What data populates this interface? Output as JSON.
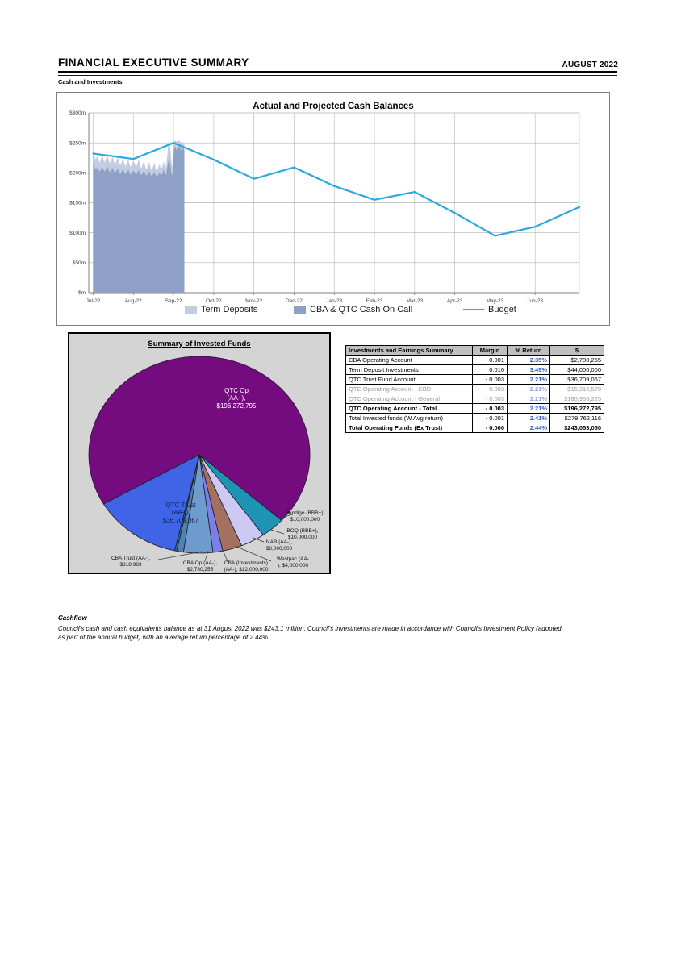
{
  "header": {
    "title": "FINANCIAL EXECUTIVE SUMMARY",
    "date": "AUGUST 2022",
    "section": "Cash and Investments"
  },
  "chart_data": [
    {
      "type": "area",
      "title": "Actual and Projected Cash Balances",
      "xlabel": "",
      "ylabel": "",
      "ylim": [
        0,
        300
      ],
      "grid": true,
      "legend_position": "bottom",
      "ylabels": [
        "$300m",
        "$250m",
        "$200m",
        "$150m",
        "$100m",
        "$50m",
        "$m"
      ],
      "categories": [
        "Jul-22",
        "Aug-22",
        "Sep-22",
        "Oct-22",
        "Nov-22",
        "Dec-22",
        "Jan-23",
        "Feb-23",
        "Mar-23",
        "Apr-23",
        "May-23",
        "Jun-23"
      ],
      "daily_months_span": [
        0,
        2.27
      ],
      "series": [
        {
          "name": "Term Deposits",
          "type": "area",
          "color": "#C3CCE1",
          "values": [
            16,
            18,
            16,
            19,
            17,
            15,
            18,
            20,
            17,
            15,
            18,
            20,
            16,
            15,
            17,
            19,
            16,
            14,
            17,
            19,
            15,
            14,
            16,
            18,
            15,
            13,
            16,
            18,
            14,
            13,
            15,
            16,
            14,
            12,
            15,
            17,
            13,
            11,
            14,
            16,
            12,
            10,
            13,
            15,
            12,
            10,
            13,
            15,
            11,
            10,
            12,
            14,
            11,
            12,
            14,
            12,
            14,
            20,
            33,
            28,
            20,
            14,
            12,
            10,
            14,
            11,
            9,
            12,
            10,
            9,
            12
          ]
        },
        {
          "name": "CBA & QTC Cash On Call",
          "type": "area",
          "color": "#8FA0C6",
          "values": [
            218,
            210,
            206,
            209,
            205,
            202,
            206,
            210,
            205,
            202,
            207,
            210,
            204,
            201,
            205,
            208,
            202,
            200,
            204,
            207,
            201,
            199,
            203,
            206,
            200,
            198,
            202,
            205,
            199,
            197,
            201,
            204,
            200,
            197,
            201,
            205,
            199,
            196,
            200,
            204,
            198,
            195,
            199,
            203,
            197,
            194,
            198,
            202,
            196,
            193,
            197,
            201,
            195,
            198,
            205,
            200,
            196,
            210,
            224,
            215,
            200,
            196,
            240,
            244,
            238,
            242,
            245,
            240,
            237,
            241,
            238
          ]
        },
        {
          "name": "Budget",
          "type": "line",
          "color": "#2BA9DF",
          "months": [
            0,
            1,
            2,
            3,
            4,
            5,
            6,
            7,
            8,
            9,
            10,
            11,
            12
          ],
          "values": [
            232,
            223,
            250,
            222,
            190,
            209,
            178,
            155,
            168,
            133,
            95,
            110,
            143
          ]
        }
      ]
    },
    {
      "type": "pie",
      "title": "Summary of Invested Funds",
      "start_angle_deg": 240,
      "slices": [
        {
          "name": "QTC Op (AA+)",
          "value": 196272795,
          "color": "#740B7F"
        },
        {
          "name": "Bendigo (BBB+)",
          "value": 10000000,
          "color": "#1F93B4"
        },
        {
          "name": "BOQ (BBB+)",
          "value": 10000000,
          "color": "#CCCAF4"
        },
        {
          "name": "NAB (AA-)",
          "value": 8000000,
          "color": "#A4705F"
        },
        {
          "name": "Westpac (AA-)",
          "value": 4000000,
          "color": "#7D7FE8"
        },
        {
          "name": "CBA (Investments) (AA-)",
          "value": 12000000,
          "color": "#6F9CCE"
        },
        {
          "name": "CBA Op (AA-)",
          "value": 2780255,
          "color": "#4E81B8"
        },
        {
          "name": "CBA Trust (AA-)",
          "value": 818969,
          "color": "#2F6B7E"
        },
        {
          "name": "QTC Trust (AA+)",
          "value": 36709067,
          "color": "#3F64E6"
        }
      ],
      "labels": {
        "qtc_op": [
          "QTC Op",
          "(AA+),",
          "$196,272,795"
        ],
        "qtc_trust": [
          "QTC Trust",
          "(AA+),",
          "$36,709,067"
        ],
        "bendigo": [
          "Bendigo (BBB+),",
          "$10,000,000"
        ],
        "boq": [
          "BOQ (BBB+),",
          "$10,000,000"
        ],
        "nab": [
          "NAB (AA-),",
          "$8,000,000"
        ],
        "westpac": [
          "Westpac (AA-",
          "), $4,000,000"
        ],
        "cba_inv": [
          "CBA (Investments)",
          "(AA-), $12,000,000"
        ],
        "cba_op": [
          "CBA Op (AA-),",
          "$2,780,255"
        ],
        "cba_trust": [
          "CBA Trust (AA-),",
          "$818,969"
        ]
      }
    }
  ],
  "table": {
    "columns": [
      "Investments and Earnings Summary",
      "Margin",
      "% Return",
      "$"
    ],
    "rows": [
      {
        "name": "CBA Operating Account",
        "margin": "- 0.001",
        "return": "2.35%",
        "amount": "$2,780,255"
      },
      {
        "name": "Term Deposit Investments",
        "margin": "0.010",
        "return": "3.49%",
        "amount": "$44,000,000"
      },
      {
        "name": "QTC Trust Fund Account",
        "margin": "- 0.003",
        "return": "2.21%",
        "amount": "$36,709,067"
      },
      {
        "name": "QTC Operating Account - CBD",
        "margin": "- 0.003",
        "return": "2.21%",
        "amount": "$15,316,570"
      },
      {
        "name": "QTC Operating Account - General",
        "margin": "- 0.003",
        "return": "2.21%",
        "amount": "$180,956,225"
      },
      {
        "name": "QTC Operating Account - Total",
        "margin": "- 0.003",
        "return": "2.21%",
        "amount": "$196,272,795"
      },
      {
        "name": "Total Invested funds (W.Avg return)",
        "margin": "- 0.001",
        "return": "2.41%",
        "amount": "$279,762,116"
      },
      {
        "name": "Total Operating Funds (Ex Trust)",
        "margin": "- 0.000",
        "return": "2.44%",
        "amount": "$243,053,050"
      }
    ]
  },
  "cashflow": {
    "heading": "Cashflow",
    "body": "Council's cash and cash equivalents balance as at 31 August 2022 was $243.1 million. Council's investments are made in accordance with Council's Investment Policy (adopted as part of the annual budget) with an average return percentage of 2.44%."
  }
}
